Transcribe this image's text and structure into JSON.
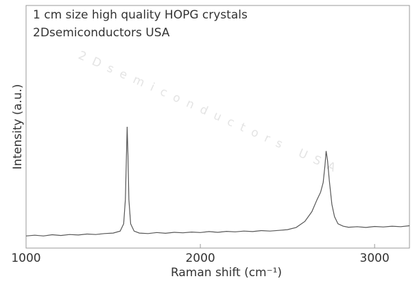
{
  "chart_data": {
    "type": "line",
    "title": "1 cm size high quality HOPG crystals",
    "subtitle": "2Dsemiconductors USA",
    "watermark": "2Dsemiconductors USA",
    "x_label": "Raman shift (cm⁻¹)",
    "y_label": "Intensity (a.u.)",
    "color": "#555555",
    "x": [
      1000,
      1050,
      1100,
      1150,
      1200,
      1250,
      1300,
      1350,
      1400,
      1450,
      1500,
      1540,
      1560,
      1570,
      1575,
      1580,
      1585,
      1590,
      1600,
      1620,
      1650,
      1700,
      1750,
      1800,
      1850,
      1900,
      1950,
      2000,
      2050,
      2100,
      2150,
      2200,
      2250,
      2300,
      2350,
      2400,
      2450,
      2500,
      2550,
      2600,
      2640,
      2670,
      2690,
      2705,
      2715,
      2722,
      2730,
      2740,
      2755,
      2770,
      2790,
      2820,
      2850,
      2900,
      2950,
      3000,
      3050,
      3100,
      3150,
      3200
    ],
    "values": [
      5,
      5.3,
      5,
      5.5,
      5.2,
      5.6,
      5.4,
      5.8,
      5.6,
      6,
      6.2,
      7,
      10,
      20,
      35,
      50,
      38,
      20,
      10,
      7,
      6.2,
      6,
      6.4,
      6.1,
      6.5,
      6.3,
      6.6,
      6.4,
      6.8,
      6.5,
      6.9,
      6.7,
      7,
      6.8,
      7.2,
      7,
      7.3,
      7.6,
      8.5,
      11,
      15,
      20,
      23,
      27,
      34,
      40,
      36,
      28,
      18,
      13,
      10,
      9,
      8.6,
      8.8,
      8.5,
      8.9,
      8.7,
      9,
      8.8,
      9.2
    ],
    "xlim": [
      1000,
      3200
    ],
    "ylim": [
      0,
      100
    ],
    "xticks": [
      1000,
      2000,
      3000
    ]
  }
}
